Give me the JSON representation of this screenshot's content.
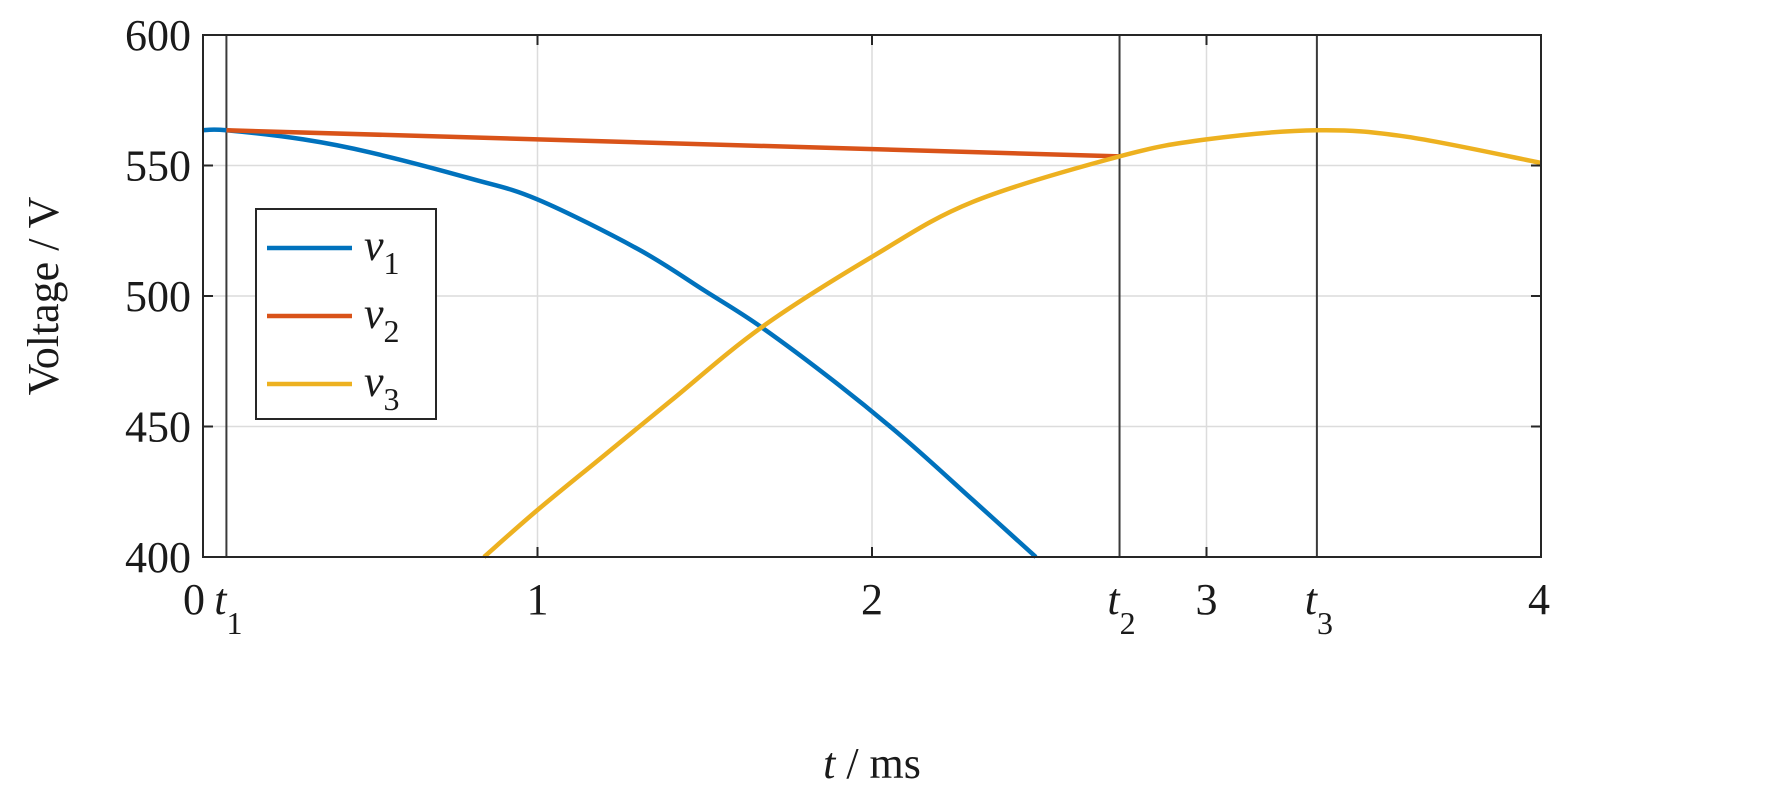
{
  "chart_data": {
    "type": "line",
    "xlabel_var": "t",
    "xlabel_unit": " / ms",
    "ylabel": "Voltage / V",
    "xlim": [
      0,
      4
    ],
    "ylim": [
      400,
      600
    ],
    "x_ticks": [
      {
        "value": 0,
        "label": "0"
      },
      {
        "value": 1,
        "label": "1"
      },
      {
        "value": 2,
        "label": "2"
      },
      {
        "value": 3,
        "label": "3"
      },
      {
        "value": 4,
        "label": "4"
      }
    ],
    "y_ticks": [
      {
        "value": 400,
        "label": "400"
      },
      {
        "value": 450,
        "label": "450"
      },
      {
        "value": 500,
        "label": "500"
      },
      {
        "value": 550,
        "label": "550"
      },
      {
        "value": 600,
        "label": "600"
      }
    ],
    "grid": true,
    "legend_position": "left",
    "markers": [
      {
        "name": "t",
        "sub": "1",
        "x": 0.07
      },
      {
        "name": "t",
        "sub": "2",
        "x": 2.74
      },
      {
        "name": "t",
        "sub": "3",
        "x": 3.33
      }
    ],
    "series": [
      {
        "name": "v",
        "sub": "1",
        "color": "#0072BD",
        "x": [
          0.0,
          0.07,
          0.3,
          0.5,
          0.8,
          1.0,
          1.3,
          1.5,
          1.67,
          1.9,
          2.1,
          2.3,
          2.49
        ],
        "y": [
          563.5,
          563.5,
          560,
          555,
          545,
          537,
          518,
          502,
          488,
          466,
          445,
          422,
          400
        ]
      },
      {
        "name": "v",
        "sub": "2",
        "color": "#D95319",
        "x": [
          0.07,
          2.74
        ],
        "y": [
          563.5,
          553.5
        ]
      },
      {
        "name": "v",
        "sub": "3",
        "color": "#EDB120",
        "x": [
          0.84,
          1.0,
          1.2,
          1.4,
          1.67,
          2.0,
          2.3,
          2.74,
          3.0,
          3.33,
          3.6,
          4.0
        ],
        "y": [
          400,
          418,
          439,
          460,
          488,
          515,
          536,
          553.5,
          560,
          563.5,
          561,
          551
        ]
      }
    ]
  }
}
